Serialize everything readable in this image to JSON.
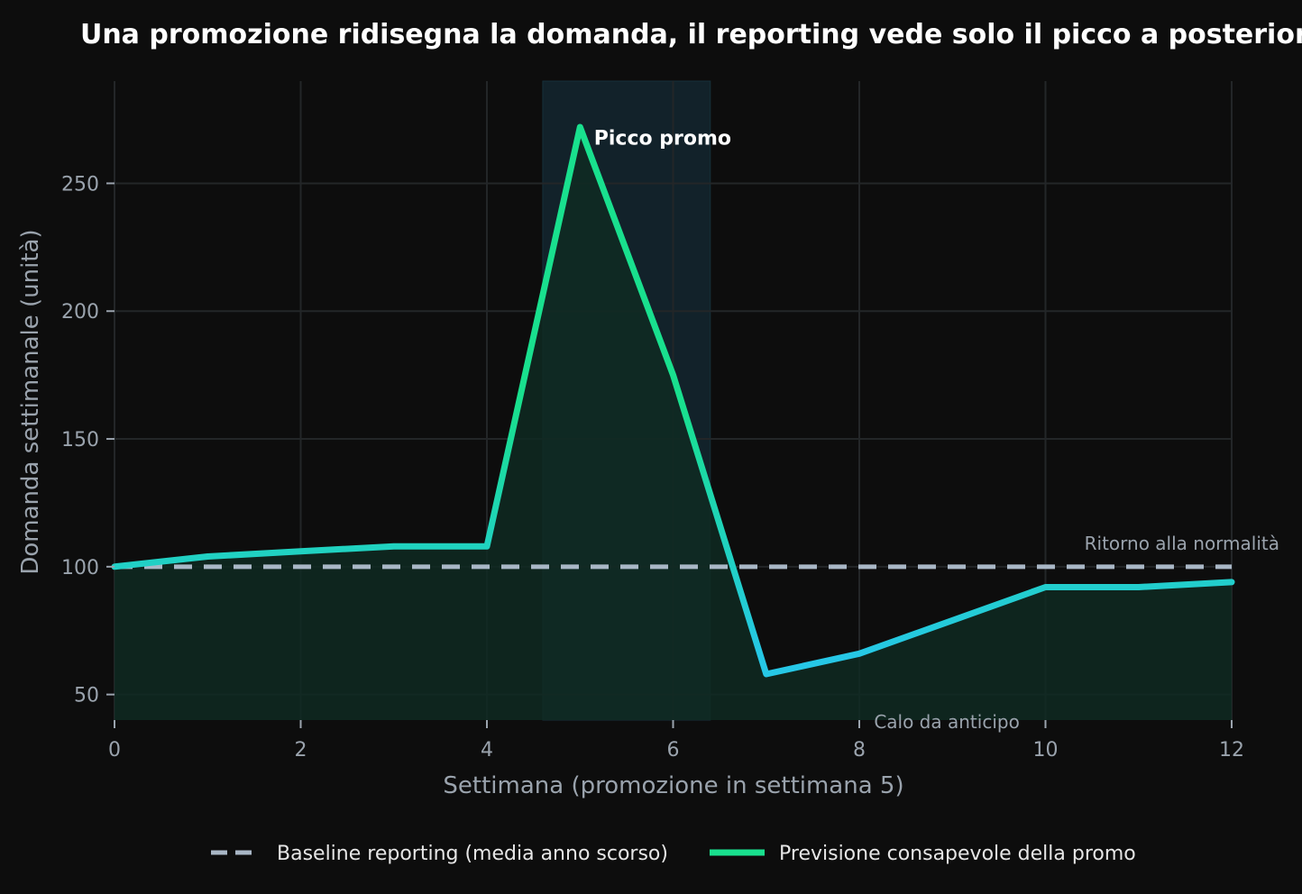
{
  "colors": {
    "background": "#0d0d0d",
    "grid": "#232628",
    "baseline": "#a9b7c6",
    "forecast_start": "#19e08e",
    "forecast_end": "#26c7e6",
    "fill": "#0f2a22",
    "promo_band": "#12222a"
  },
  "chart_data": {
    "type": "line",
    "title": "Una promozione ridisegna la domanda, il reporting vede solo il picco a posteriori",
    "xlabel": "Settimana (promozione in settimana 5)",
    "ylabel": "Domanda settimanale (unità)",
    "xlim": [
      0,
      12
    ],
    "ylim": [
      40,
      290
    ],
    "xticks": [
      0,
      2,
      4,
      6,
      8,
      10,
      12
    ],
    "yticks": [
      50,
      100,
      150,
      200,
      250
    ],
    "grid": true,
    "legend_position": "bottom-center",
    "promo_window": [
      4.6,
      6.4
    ],
    "series": [
      {
        "name": "Baseline reporting (media anno scorso)",
        "style": "dashed",
        "x": [
          0,
          12
        ],
        "y": [
          100,
          100
        ]
      },
      {
        "name": "Previsione consapevole della promo",
        "style": "solid",
        "x": [
          0,
          1,
          2,
          3,
          4,
          5,
          6,
          7,
          8,
          9,
          10,
          11,
          12
        ],
        "y": [
          100,
          104,
          106,
          108,
          108,
          272,
          175,
          58,
          66,
          79,
          92,
          92,
          94
        ]
      }
    ],
    "annotations": [
      {
        "text": "Picco promo",
        "x": 5.15,
        "y": 268
      },
      {
        "text": "Ritorno alla normalità",
        "x": 12.25,
        "y": 106
      },
      {
        "text": "Calo da anticipo",
        "x": 8.1,
        "y": 40
      }
    ]
  }
}
